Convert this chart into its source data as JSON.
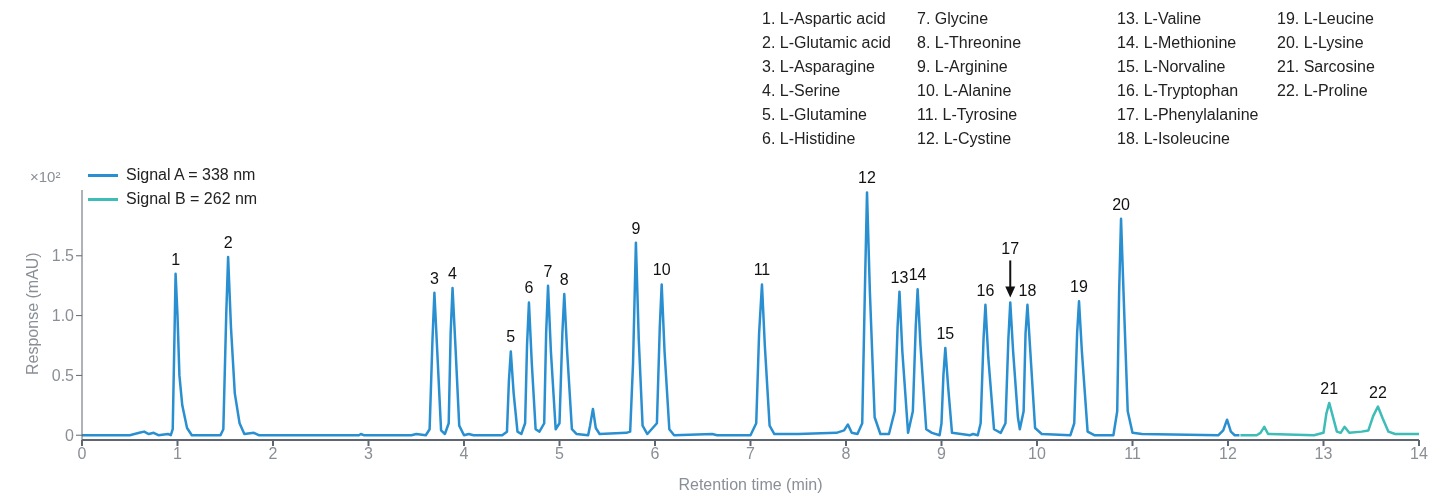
{
  "chart_data": {
    "type": "line",
    "xlabel": "Retention time (min)",
    "ylabel": "Response (mAU)",
    "annotations": [
      "×10²",
      "1. L-Aspartic acid",
      "2. L-Glutamic acid",
      "3. L-Asparagine",
      "4. L-Serine",
      "5. L-Glutamine",
      "6. L-Histidine",
      "7. Glycine",
      "8. L-Threonine",
      "9. L-Arginine",
      "10. L-Alanine",
      "11. L-Tyrosine",
      "12. L-Cystine",
      "13. L-Valine",
      "14. L-Methionine",
      "15. L-Norvaline",
      "16. L-Tryptophan",
      "17. L-Phenylalanine",
      "18. L-Isoleucine",
      "19. L-Leucine",
      "20. L-Lysine",
      "21. Sarcosine",
      "22. L-Proline",
      {
        "text": "1",
        "x": 0.98,
        "y": 1.35
      },
      {
        "text": "2",
        "x": 1.53,
        "y": 1.49
      },
      {
        "text": "3",
        "x": 3.69,
        "y": 1.19
      },
      {
        "text": "4",
        "x": 3.88,
        "y": 1.23
      },
      {
        "text": "5",
        "x": 4.49,
        "y": 0.7
      },
      {
        "text": "6",
        "x": 4.68,
        "y": 1.11
      },
      {
        "text": "7",
        "x": 4.88,
        "y": 1.25
      },
      {
        "text": "8",
        "x": 5.05,
        "y": 1.18
      },
      {
        "text": "9",
        "x": 5.8,
        "y": 1.61
      },
      {
        "text": "10",
        "x": 6.07,
        "y": 1.26
      },
      {
        "text": "11",
        "x": 7.12,
        "y": 1.26
      },
      {
        "text": "12",
        "x": 8.22,
        "y": 2.03
      },
      {
        "text": "13",
        "x": 8.56,
        "y": 1.2
      },
      {
        "text": "14",
        "x": 8.75,
        "y": 1.22
      },
      {
        "text": "15",
        "x": 9.04,
        "y": 0.73
      },
      {
        "text": "16",
        "x": 9.46,
        "y": 1.09
      },
      {
        "text": "17",
        "x": 9.72,
        "y": 1.11
      },
      {
        "text": "18",
        "x": 9.9,
        "y": 1.09
      },
      {
        "text": "19",
        "x": 10.44,
        "y": 1.12
      },
      {
        "text": "20",
        "x": 10.88,
        "y": 1.81
      },
      {
        "text": "21",
        "x": 13.06,
        "y": 0.27
      },
      {
        "text": "22",
        "x": 13.57,
        "y": 0.24
      }
    ],
    "xlim": [
      0,
      14
    ],
    "xticks": [
      0,
      1,
      2,
      3,
      4,
      5,
      6,
      7,
      8,
      9,
      10,
      11,
      12,
      13,
      14
    ],
    "ylim": [
      -0.04,
      2.05
    ],
    "yticks": [
      0,
      0.5,
      {
        "value": 1,
        "label": "1.0"
      },
      1.5
    ],
    "grid": false,
    "legend": "top left",
    "marker": "none",
    "line_style": "solid",
    "series": [
      {
        "name": "Signal A = 338 nm",
        "color": "#2a8fd0",
        "x": [
          0,
          0.5,
          0.6,
          0.65,
          0.7,
          0.75,
          0.8,
          0.9,
          0.93,
          0.95,
          0.97,
          0.98,
          1.0,
          1.02,
          1.05,
          1.1,
          1.15,
          1.45,
          1.48,
          1.51,
          1.53,
          1.56,
          1.6,
          1.65,
          1.7,
          1.8,
          1.85,
          2.9,
          2.92,
          2.95,
          3.45,
          3.5,
          3.6,
          3.64,
          3.67,
          3.69,
          3.72,
          3.76,
          3.8,
          3.84,
          3.86,
          3.88,
          3.91,
          3.95,
          4.0,
          4.05,
          4.1,
          4.4,
          4.45,
          4.47,
          4.49,
          4.52,
          4.56,
          4.6,
          4.64,
          4.66,
          4.68,
          4.71,
          4.75,
          4.79,
          4.84,
          4.86,
          4.88,
          4.91,
          4.96,
          5.0,
          5.03,
          5.05,
          5.08,
          5.13,
          5.18,
          5.3,
          5.32,
          5.35,
          5.38,
          5.42,
          5.7,
          5.74,
          5.77,
          5.8,
          5.83,
          5.87,
          5.92,
          6.02,
          6.05,
          6.07,
          6.1,
          6.15,
          6.2,
          6.6,
          6.65,
          7.0,
          7.06,
          7.09,
          7.12,
          7.15,
          7.2,
          7.25,
          7.5,
          7.9,
          7.98,
          8.02,
          8.06,
          8.12,
          8.17,
          8.2,
          8.22,
          8.25,
          8.3,
          8.36,
          8.45,
          8.51,
          8.54,
          8.56,
          8.59,
          8.65,
          8.7,
          8.73,
          8.75,
          8.78,
          8.84,
          8.9,
          8.98,
          9.0,
          9.02,
          9.04,
          9.07,
          9.11,
          9.3,
          9.33,
          9.38,
          9.41,
          9.44,
          9.46,
          9.49,
          9.55,
          9.62,
          9.67,
          9.7,
          9.72,
          9.75,
          9.8,
          9.82,
          9.86,
          9.88,
          9.9,
          9.93,
          9.98,
          10.05,
          10.35,
          10.39,
          10.42,
          10.44,
          10.47,
          10.53,
          10.6,
          10.8,
          10.84,
          10.86,
          10.88,
          10.91,
          10.95,
          11.0,
          11.1,
          11.9,
          11.95,
          11.99,
          12.03,
          12.07,
          12.12
        ],
        "values": [
          0,
          0,
          0.02,
          0.03,
          0.01,
          0.02,
          0,
          0.01,
          0,
          0.05,
          0.9,
          1.35,
          1.0,
          0.5,
          0.25,
          0.06,
          0,
          0,
          0.05,
          1.0,
          1.49,
          0.9,
          0.35,
          0.1,
          0.01,
          0.02,
          0,
          0,
          0.01,
          0,
          0,
          0.01,
          0,
          0.05,
          0.8,
          1.19,
          0.7,
          0.04,
          0.01,
          0.1,
          0.85,
          1.23,
          0.75,
          0.08,
          0,
          0.01,
          0,
          0,
          0.03,
          0.45,
          0.7,
          0.35,
          0.03,
          0.01,
          0.1,
          0.75,
          1.11,
          0.6,
          0.05,
          0.03,
          0.1,
          0.85,
          1.25,
          0.7,
          0.05,
          0.1,
          0.85,
          1.18,
          0.7,
          0.05,
          0.01,
          0,
          0.08,
          0.22,
          0.06,
          0.01,
          0.02,
          0.03,
          0.6,
          1.61,
          0.8,
          0.08,
          0.01,
          0.1,
          0.9,
          1.26,
          0.7,
          0.05,
          0,
          0.01,
          0,
          0,
          0.1,
          0.85,
          1.26,
          0.75,
          0.08,
          0.01,
          0.01,
          0.02,
          0.04,
          0.09,
          0.02,
          0.01,
          0.1,
          1.3,
          2.03,
          1.2,
          0.15,
          0.01,
          0.01,
          0.2,
          0.9,
          1.2,
          0.7,
          0.02,
          0.2,
          0.9,
          1.22,
          0.75,
          0.05,
          0.02,
          0,
          0.1,
          0.5,
          0.73,
          0.4,
          0.02,
          0,
          0.01,
          0,
          0.1,
          0.8,
          1.09,
          0.65,
          0.05,
          0.02,
          0.1,
          0.8,
          1.11,
          0.7,
          0.15,
          0.05,
          0.2,
          0.85,
          1.09,
          0.7,
          0.06,
          0.01,
          0,
          0.1,
          0.85,
          1.12,
          0.7,
          0.03,
          0,
          0,
          0.2,
          1.2,
          1.81,
          1.1,
          0.2,
          0.02,
          0.01,
          0,
          0.04,
          0.13,
          0.03,
          0,
          0
        ]
      },
      {
        "name": "Signal B = 262 nm",
        "color": "#3dbcb8",
        "x": [
          12.13,
          12.3,
          12.34,
          12.38,
          12.42,
          12.9,
          13.0,
          13.03,
          13.06,
          13.09,
          13.14,
          13.18,
          13.22,
          13.27,
          13.4,
          13.47,
          13.52,
          13.57,
          13.62,
          13.68,
          13.75,
          14.0
        ],
        "values": [
          0,
          0,
          0.02,
          0.07,
          0.01,
          0,
          0.02,
          0.18,
          0.27,
          0.18,
          0.03,
          0.02,
          0.07,
          0.02,
          0.03,
          0.04,
          0.16,
          0.24,
          0.14,
          0.03,
          0.01,
          0.01
        ]
      }
    ]
  }
}
